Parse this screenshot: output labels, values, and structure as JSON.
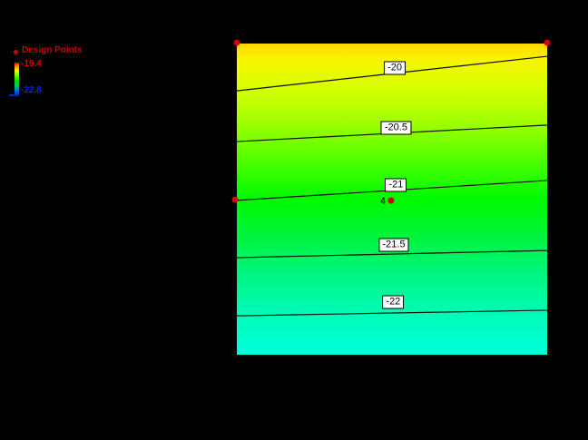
{
  "background_color": "#000000",
  "legend": {
    "title": "Design Points",
    "title_color": "#cc0000",
    "marker_icon": "red-dot",
    "max_label": "-19.4",
    "min_label": "-22.8",
    "max_color": "#e00000",
    "min_color": "#0022ff"
  },
  "chart_data": {
    "type": "heatmap",
    "subtype": "filled-contour-response-surface",
    "title": "",
    "xlabel": "",
    "ylabel": "",
    "grid": false,
    "legend_position": "top-left",
    "value_range": {
      "max": -19.4,
      "min": -22.8
    },
    "contour_interval": 0.5,
    "contour_levels": [
      -20,
      -20.5,
      -21,
      -21.5,
      -22
    ],
    "gradient_top_color": "#ffd600",
    "gradient_bottom_color": "#00ffdd",
    "contours": [
      {
        "label": "-20",
        "y_left": 0.152,
        "y_right": 0.041,
        "label_cx": 0.509,
        "label_cy": 0.079
      },
      {
        "label": "-20.5",
        "y_left": 0.315,
        "y_right": 0.262,
        "label_cx": 0.513,
        "label_cy": 0.27
      },
      {
        "label": "-21",
        "y_left": 0.504,
        "y_right": 0.44,
        "label_cx": 0.513,
        "label_cy": 0.456
      },
      {
        "label": "-21.5",
        "y_left": 0.688,
        "y_right": 0.665,
        "label_cx": 0.506,
        "label_cy": 0.646
      },
      {
        "label": "-22",
        "y_left": 0.875,
        "y_right": 0.857,
        "label_cx": 0.504,
        "label_cy": 0.832
      }
    ],
    "design_points": [
      {
        "id": "4",
        "x": 0.497,
        "y": 0.504
      }
    ],
    "vertex_markers": [
      {
        "x": 0.0,
        "y": -0.003
      },
      {
        "x": 1.0,
        "y": -0.003
      },
      {
        "x": -0.005,
        "y": 0.501
      }
    ],
    "line_color": "#101000",
    "point_color": "#d40000"
  }
}
